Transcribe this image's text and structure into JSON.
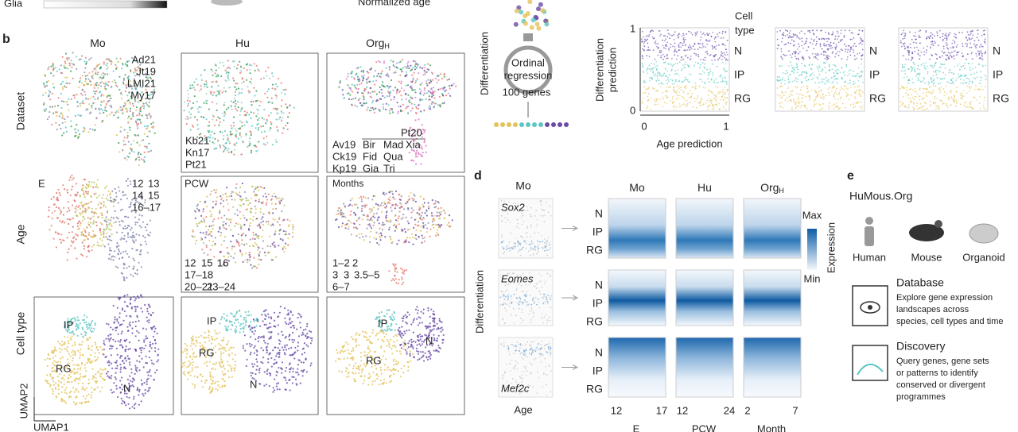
{
  "top": {
    "glia": "Glia",
    "normalized_age": "Normalized age"
  },
  "panel_b": {
    "label": "b",
    "columns": [
      {
        "text": "Mo"
      },
      {
        "text": "Hu"
      },
      {
        "text": "Org",
        "sub": "H"
      }
    ],
    "rows": [
      "Dataset",
      "Age",
      "Cell type"
    ],
    "umap2": "UMAP2",
    "umap1": "UMAP1",
    "dataset_legends": [
      [
        "Ad21",
        "Jt19",
        "LMI21",
        "My17"
      ],
      [
        "Kb21",
        "Kn17",
        "Pt21"
      ],
      [
        "Av19",
        "Ck19",
        "Kp19",
        "Bir",
        "Fid",
        "Gia",
        "Mad",
        "Qua",
        "Tri",
        "Xia",
        "Pt20"
      ]
    ],
    "age_titles": [
      "E",
      "PCW",
      "Months"
    ],
    "age_legends": [
      [
        "12",
        "13",
        "14",
        "15",
        "16–17"
      ],
      [
        "12",
        "15",
        "16",
        "17–18",
        "20–21",
        "23–24"
      ],
      [
        "1–2",
        "2",
        "3",
        "3",
        "3.5–5",
        "6–7"
      ]
    ],
    "cell_types": [
      "IP",
      "RG",
      "N"
    ]
  },
  "panel_c": {
    "differentiation": "Differentiation",
    "regression": [
      "Ordinal",
      "regression"
    ],
    "genes": "100 genes",
    "y_label": [
      "Differentiation",
      "prediction"
    ],
    "yticks": [
      1,
      0
    ],
    "xticks": [
      0,
      1
    ],
    "x_label": "Age prediction",
    "legend_title": [
      "Cell",
      "type"
    ],
    "cell_types": [
      "N",
      "IP",
      "RG"
    ]
  },
  "panel_d": {
    "label": "d",
    "left_title": "Mo",
    "genes": [
      "Sox2",
      "Eomes",
      "Mef2c"
    ],
    "age": "Age",
    "differentiation": "Differentiation",
    "columns": [
      {
        "text": "Mo"
      },
      {
        "text": "Hu"
      },
      {
        "text": "Org",
        "sub": "H"
      }
    ],
    "cell_types": [
      "N",
      "IP",
      "RG"
    ],
    "max": "Max",
    "min": "Min",
    "expression": "Expression",
    "xticks": [
      [
        "12",
        "17"
      ],
      [
        "12",
        "24"
      ],
      [
        "2",
        "7"
      ]
    ],
    "x_labels": [
      "E",
      "PCW",
      "Month"
    ]
  },
  "panel_e": {
    "label": "e",
    "site": "HuMous.Org",
    "species": [
      "Human",
      "Mouse",
      "Organoid"
    ],
    "database": {
      "title": "Database",
      "lines": [
        "Explore gene expression",
        "landscapes across",
        "species, cell types and time"
      ]
    },
    "discovery": {
      "title": "Discovery",
      "lines": [
        "Query genes, gene sets",
        "or patterns to identify",
        "conserved or divergent",
        "programmes"
      ]
    }
  }
}
